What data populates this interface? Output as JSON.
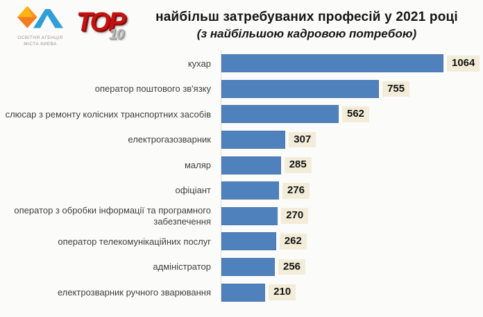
{
  "header": {
    "logo": {
      "line1": "ОСВІТНЯ АГЕНЦІЯ",
      "line2": "МІСТА КИЄВА"
    },
    "top_badge": {
      "top": "TOP",
      "number": "10"
    },
    "title_line1": "найбільш затребуваних професій у 2021 році",
    "title_line2": "(з найбільшою кадровою потребою)"
  },
  "colors": {
    "bar": "#4f81bd",
    "value_badge_bg": "#f2ecd9",
    "top_badge_red": "#c41210",
    "axis_line": "#dddcd8",
    "logo_yellow": "#fdb515",
    "logo_orange": "#f47b20",
    "logo_blue": "#2f9fd8"
  },
  "chart_data": {
    "type": "bar",
    "orientation": "horizontal",
    "title": "TOP 10 найбільш затребуваних професій у 2021 році",
    "subtitle": "(з найбільшою кадровою потребою)",
    "categories": [
      "кухар",
      "оператор поштового зв'язку",
      "слюсар з ремонту колісних транспортних засобів",
      "електрогазозварник",
      "маляр",
      "офіціант",
      "оператор з обробки інформації та програмного забезпечення",
      "оператор телекомунікаційних послуг",
      "адміністратор",
      "електрозварник ручного зварювання"
    ],
    "values": [
      1064,
      755,
      562,
      307,
      285,
      276,
      270,
      262,
      256,
      210
    ],
    "value_labels": true,
    "xlim": [
      0,
      1100
    ],
    "grid": false,
    "legend": false
  }
}
